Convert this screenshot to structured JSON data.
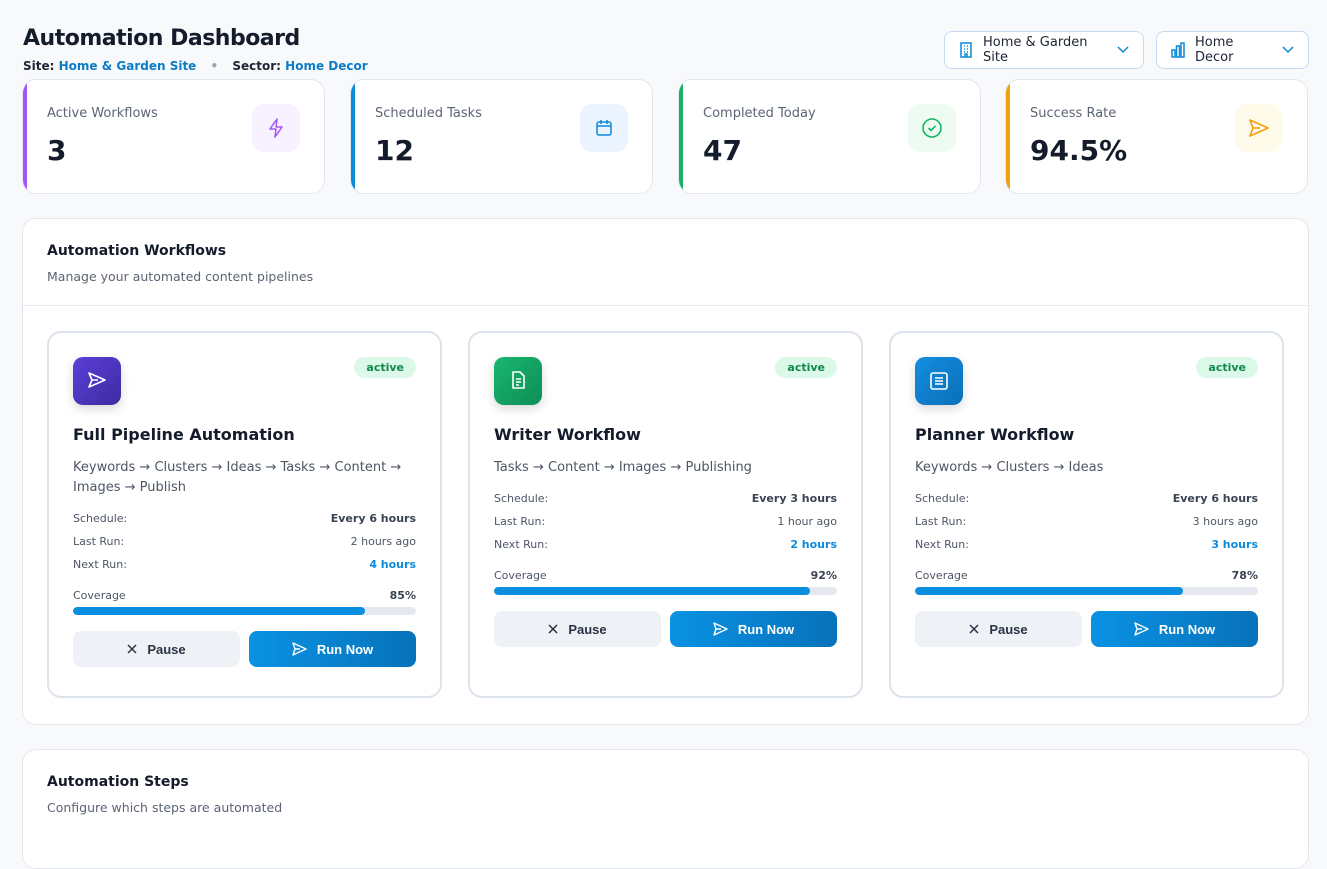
{
  "header": {
    "title": "Automation Dashboard",
    "site_label": "Site:",
    "site": "Home & Garden Site",
    "sector_label": "Sector:",
    "sector": "Home Decor"
  },
  "selectors": {
    "site": "Home & Garden Site",
    "sector": "Home Decor"
  },
  "stats": [
    {
      "label": "Active Workflows",
      "value": "3",
      "color": "#a855f7",
      "icon": "lightning-icon"
    },
    {
      "label": "Scheduled Tasks",
      "value": "12",
      "color": "#0b8ad9",
      "icon": "calendar-icon"
    },
    {
      "label": "Completed Today",
      "value": "47",
      "color": "#16b364",
      "icon": "check-circle-icon"
    },
    {
      "label": "Success Rate",
      "value": "94.5%",
      "color": "#f59e0b",
      "icon": "paper-plane-icon"
    }
  ],
  "workflows_panel": {
    "title": "Automation Workflows",
    "subtitle": "Manage your automated content pipelines"
  },
  "workflows": [
    {
      "name": "Full Pipeline Automation",
      "status": "active",
      "description": "Keywords → Clusters → Ideas → Tasks → Content → Images → Publish",
      "schedule_label": "Schedule:",
      "schedule": "Every 6 hours",
      "last_run_label": "Last Run:",
      "last_run": "2 hours ago",
      "next_run_label": "Next Run:",
      "next_run": "4 hours",
      "coverage_label": "Coverage",
      "coverage": "85%",
      "coverage_value": 85,
      "pause": "Pause",
      "run": "Run Now",
      "icon": "paper-plane-icon"
    },
    {
      "name": "Writer Workflow",
      "status": "active",
      "description": "Tasks → Content → Images → Publishing",
      "schedule_label": "Schedule:",
      "schedule": "Every 3 hours",
      "last_run_label": "Last Run:",
      "last_run": "1 hour ago",
      "next_run_label": "Next Run:",
      "next_run": "2 hours",
      "coverage_label": "Coverage",
      "coverage": "92%",
      "coverage_value": 92,
      "pause": "Pause",
      "run": "Run Now",
      "icon": "document-icon"
    },
    {
      "name": "Planner Workflow",
      "status": "active",
      "description": "Keywords → Clusters → Ideas",
      "schedule_label": "Schedule:",
      "schedule": "Every 6 hours",
      "last_run_label": "Last Run:",
      "last_run": "3 hours ago",
      "next_run_label": "Next Run:",
      "next_run": "3 hours",
      "coverage_label": "Coverage",
      "coverage": "78%",
      "coverage_value": 78,
      "pause": "Pause",
      "run": "Run Now",
      "icon": "list-icon"
    }
  ],
  "steps_panel": {
    "title": "Automation Steps",
    "subtitle": "Configure which steps are automated"
  }
}
